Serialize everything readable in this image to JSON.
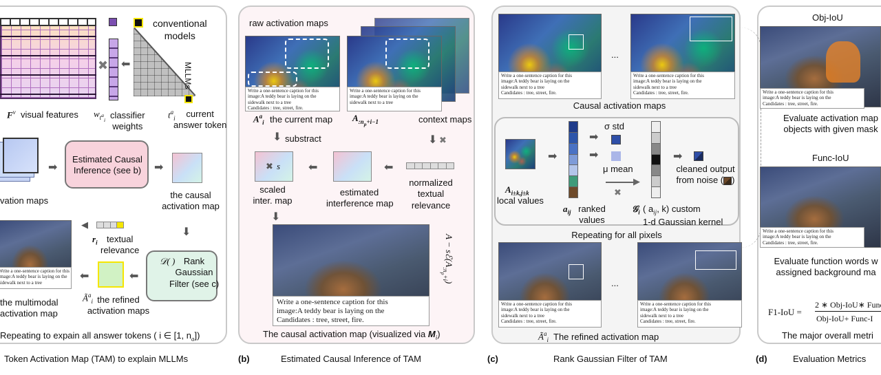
{
  "panel_a": {
    "conventional_models": "conventional\nmodels",
    "mllms": "MLLMs",
    "visual_features": "visual features",
    "classifier_weights": "classifier\nweights",
    "current_answer_token": "current\nanswer token",
    "estimated_causal_box": "Estimated Causal\nInference (see b)",
    "the_causal_activation_map": "the causal\nactivation map",
    "vation_maps": "vation maps",
    "textual_relevance": "textual\nrelevance",
    "rank_gaussian_box": "Rank\nGaussian\nFilter (see c)",
    "the_refined_activation_maps": "the refined\nactivation maps",
    "the_multimodal_activation_map": "the multimodal\nactivation map",
    "repeating": "Repeating to expain all answer tokens ( i ∈ [1, n",
    "repeating_tail": "])"
  },
  "panel_b": {
    "raw_activation_maps": "raw activation maps",
    "the_current_map": "the current map",
    "context_maps": "context maps",
    "substract": "substract",
    "s": "s",
    "scaled_inter_map": "scaled\ninter. map",
    "estimated_interference_map": "estimated\ninterference map",
    "normalized_textual_relevance": "normalized\ntextual\nrelevance",
    "formula_vertical": "A − sℰ(A",
    "bottom_caption": "The causal activation map (visualized via ",
    "bottom_caption_m": "M",
    "bottom_caption_tail": ")"
  },
  "panel_c": {
    "causal_activation_maps": "Causal activation maps",
    "sigma_std": "σ std",
    "mu_mean": "μ mean",
    "cleaned_output": "cleaned output\nfrom noise (",
    "cleaned_output_tail": ")",
    "local_values": "local values",
    "ranked_values": "ranked\nvalues",
    "gaussian_kernel": "( a",
    "gaussian_kernel_tail": ", k) custom\n1-d Gaussian kernel",
    "repeating_pixels": "Repeating for all pixels",
    "refined_caption": "The refined activation map",
    "ellipsis": "..."
  },
  "panel_d": {
    "obj_iou": "Obj-IoU",
    "obj_desc": "Evaluate activation map\nobjects with given mask",
    "func_iou": "Func-IoU",
    "func_desc": "Evaluate function words w\nassigned background ma",
    "f1_lhs": "F1-IoU =",
    "f1_num": "2 ∗ Obj-IoU∗ Func",
    "f1_den": "Obj-IoU+ Func-I",
    "overall": "The major overall metri"
  },
  "captions": {
    "a_text": "Token Activation Map (TAM) to explain MLLMs",
    "b_letter": "(b)",
    "b_text": "Estimated Causal Inference of TAM",
    "c_letter": "(c)",
    "c_text": "Rank Gaussian Filter of TAM",
    "d_letter": "(d)",
    "d_text": "Evaluation Metrics"
  },
  "image_caption": {
    "line1": "Write a one-sentence caption for this",
    "line2": "image:A teddy bear is laying on the",
    "line3": "sidewalk next to a tree",
    "line4": "Candidates : tree, street, fire."
  },
  "colors": {
    "panel_border": "#c9c9c9",
    "pink_box": "#f8d3dc",
    "green_box": "#e0f3e8",
    "panel_bg": "#f6f6f6"
  }
}
